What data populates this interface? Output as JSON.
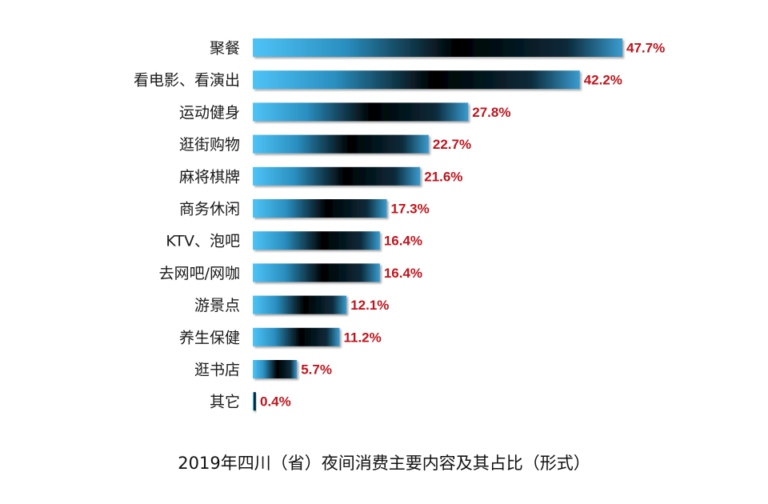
{
  "chart_data": {
    "type": "bar",
    "orientation": "horizontal",
    "title": "2019年四川（省）夜间消费主要内容及其占比（形式）",
    "categories": [
      "聚餐",
      "看电影、看演出",
      "运动健身",
      "逛街购物",
      "麻将棋牌",
      "商务休闲",
      "KTV、泡吧",
      "去网吧/网咖",
      "游景点",
      "养生保健",
      "逛书店",
      "其它"
    ],
    "values": [
      47.7,
      42.2,
      27.8,
      22.7,
      21.6,
      17.3,
      16.4,
      16.4,
      12.1,
      11.2,
      5.7,
      0.4
    ],
    "value_labels": [
      "47.7%",
      "42.2%",
      "27.8%",
      "22.7%",
      "21.6%",
      "17.3%",
      "16.4%",
      "16.4%",
      "12.1%",
      "11.2%",
      "5.7%",
      "0.4%"
    ],
    "xlim": [
      0,
      47.7
    ],
    "grid": false,
    "legend": "none",
    "colors": {
      "bar_edge": "#4fc3f7",
      "bar_center": "#000000",
      "value_label": "#c0141c"
    }
  }
}
